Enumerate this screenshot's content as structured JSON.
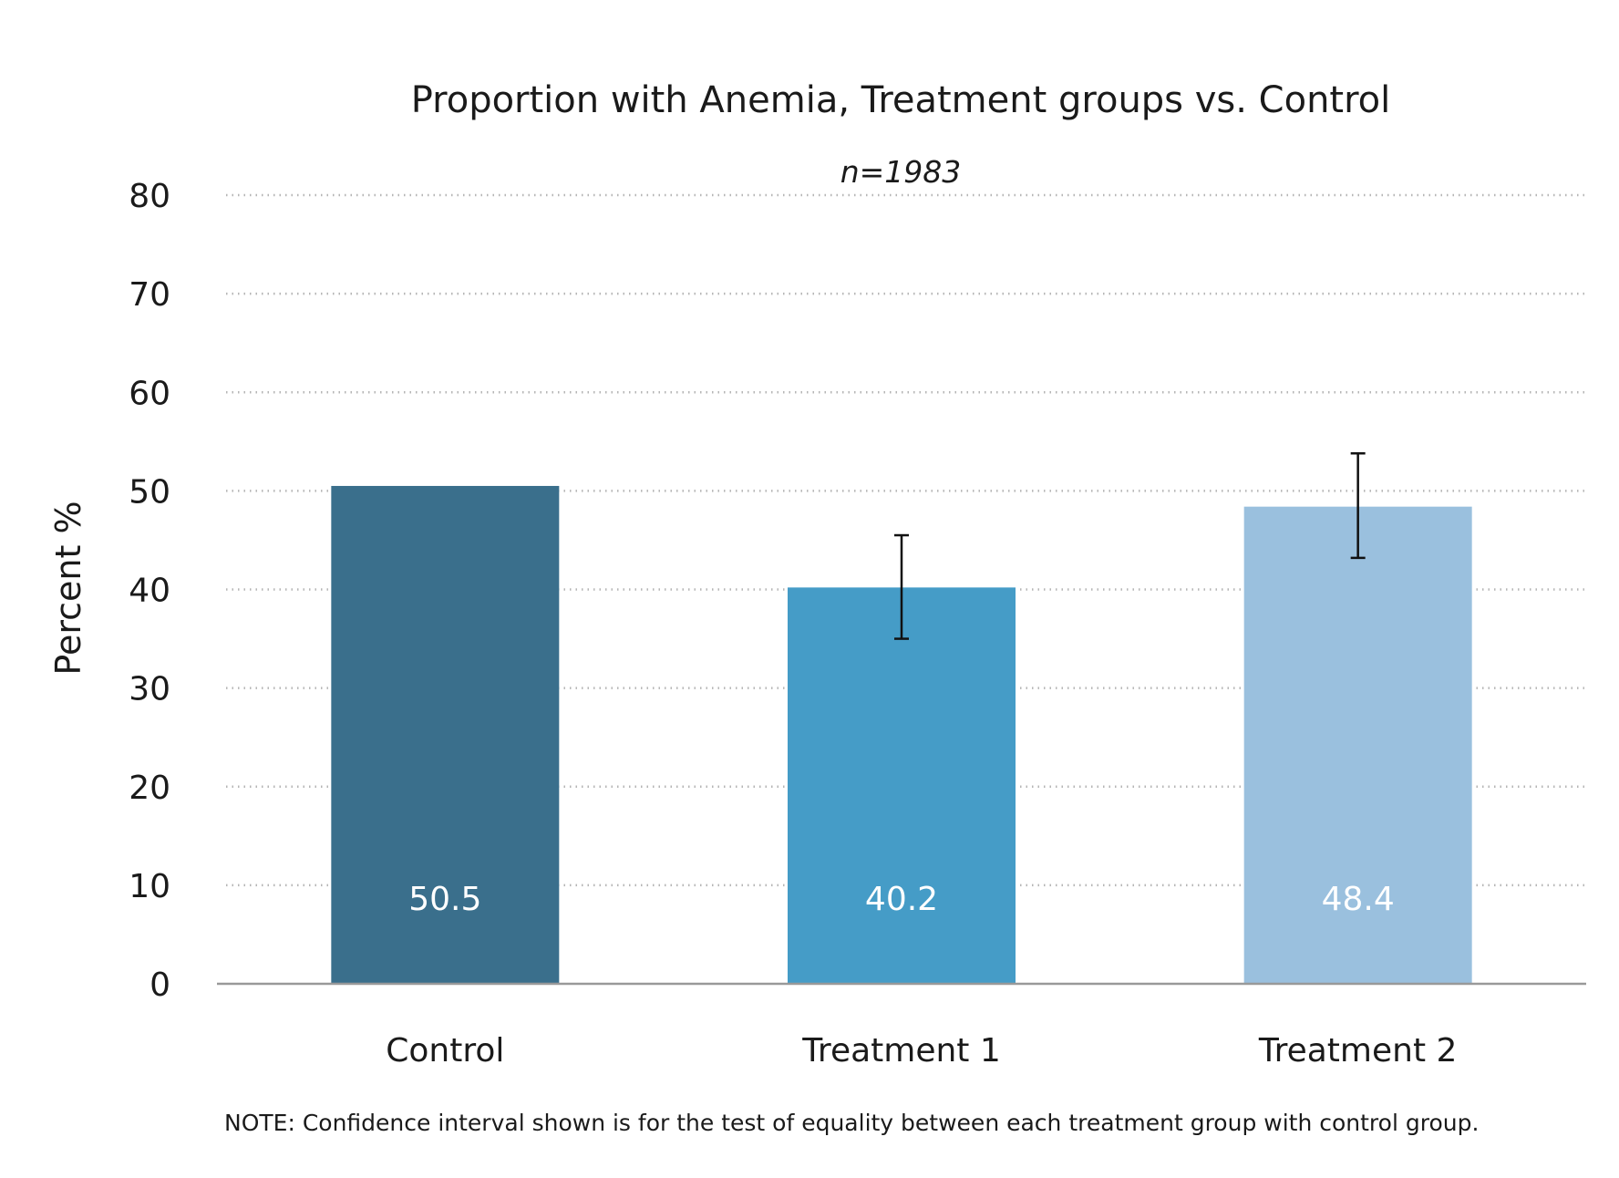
{
  "chart_data": {
    "type": "bar",
    "title": "Proportion with Anemia, Treatment groups vs. Control",
    "subtitle": "n=1983",
    "ylabel": "Percent %",
    "xlabel": "",
    "ylim": [
      0,
      80
    ],
    "yticks": [
      "0",
      "10",
      "20",
      "30",
      "40",
      "50",
      "60",
      "70",
      "80"
    ],
    "grid": true,
    "categories": [
      "Control",
      "Treatment 1",
      "Treatment 2"
    ],
    "values": [
      50.5,
      40.2,
      48.4
    ],
    "value_labels": [
      "50.5",
      "40.2",
      "48.4"
    ],
    "error_bars": [
      null,
      {
        "low": 35.0,
        "high": 45.5
      },
      {
        "low": 43.2,
        "high": 53.8
      }
    ],
    "colors": [
      "#3a6f8c",
      "#459cc7",
      "#9ac0de"
    ],
    "note": "NOTE: Confidence interval shown is for the test of equality between each treatment group with control group."
  }
}
